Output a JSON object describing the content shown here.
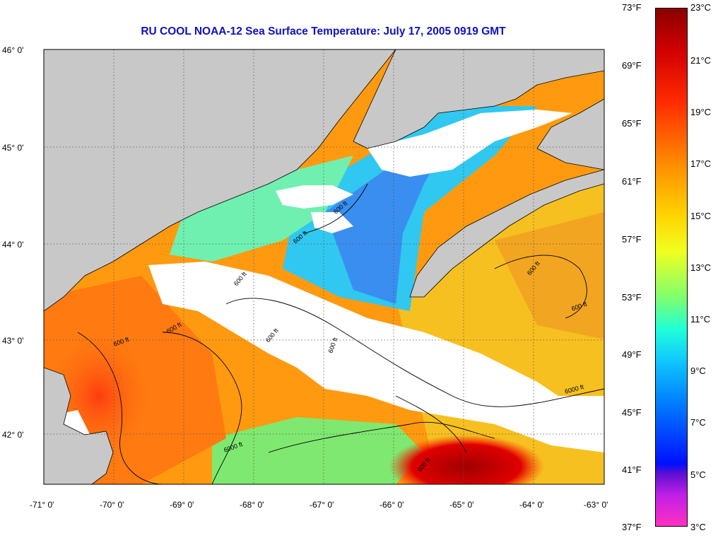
{
  "title": "RU COOL  NOAA-12  Sea Surface Temperature:  July 17, 2005 0919 GMT",
  "map": {
    "lat_labels": [
      "46° 0'",
      "45° 0'",
      "44° 0'",
      "43° 0'",
      "42° 0'"
    ],
    "lon_labels": [
      "-71° 0'",
      "-70° 0'",
      "-69° 0'",
      "-68° 0'",
      "-67° 0'",
      "-66° 0'",
      "-65° 0'",
      "-64° 0'",
      "-63° 0'"
    ],
    "contour_labels": [
      "600 ft",
      "600 ft",
      "600 ft",
      "600 ft",
      "600 ft",
      "600 ft",
      "600 ft",
      "600 ft",
      "600 ft",
      "6000 ft",
      "6000 ft",
      "600 ft"
    ],
    "colors": {
      "land": "#c8c8c8",
      "cloud": "#ffffff",
      "grid": "#555555"
    }
  },
  "colorbar": {
    "fahrenheit": [
      "73°F",
      "69°F",
      "65°F",
      "61°F",
      "57°F",
      "53°F",
      "49°F",
      "45°F",
      "41°F",
      "37°F"
    ],
    "celsius": [
      "23°C",
      "21°C",
      "19°C",
      "17°C",
      "15°C",
      "13°C",
      "11°C",
      "9°C",
      "7°C",
      "5°C",
      "3°C"
    ]
  }
}
